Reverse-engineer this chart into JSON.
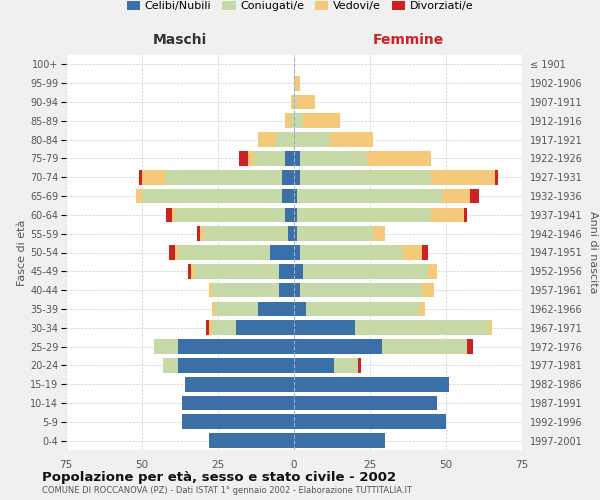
{
  "age_groups": [
    "0-4",
    "5-9",
    "10-14",
    "15-19",
    "20-24",
    "25-29",
    "30-34",
    "35-39",
    "40-44",
    "45-49",
    "50-54",
    "55-59",
    "60-64",
    "65-69",
    "70-74",
    "75-79",
    "80-84",
    "85-89",
    "90-94",
    "95-99",
    "100+"
  ],
  "birth_years": [
    "1997-2001",
    "1992-1996",
    "1987-1991",
    "1982-1986",
    "1977-1981",
    "1972-1976",
    "1967-1971",
    "1962-1966",
    "1957-1961",
    "1952-1956",
    "1947-1951",
    "1942-1946",
    "1937-1941",
    "1932-1936",
    "1927-1931",
    "1922-1926",
    "1917-1921",
    "1912-1916",
    "1907-1911",
    "1902-1906",
    "≤ 1901"
  ],
  "males": {
    "celibe": [
      28,
      37,
      37,
      36,
      38,
      38,
      19,
      12,
      5,
      5,
      8,
      2,
      3,
      4,
      4,
      3,
      0,
      0,
      0,
      0,
      0
    ],
    "coniugato": [
      0,
      0,
      0,
      0,
      5,
      8,
      8,
      14,
      22,
      28,
      30,
      28,
      36,
      46,
      38,
      10,
      6,
      1,
      0,
      0,
      0
    ],
    "vedovo": [
      0,
      0,
      0,
      0,
      0,
      0,
      1,
      1,
      1,
      1,
      1,
      1,
      1,
      2,
      8,
      2,
      6,
      2,
      1,
      0,
      0
    ],
    "divorziato": [
      0,
      0,
      0,
      0,
      0,
      0,
      1,
      0,
      0,
      1,
      2,
      1,
      2,
      0,
      1,
      3,
      0,
      0,
      0,
      0,
      0
    ]
  },
  "females": {
    "nubile": [
      30,
      50,
      47,
      51,
      13,
      29,
      20,
      4,
      2,
      3,
      2,
      1,
      1,
      1,
      2,
      2,
      0,
      0,
      0,
      0,
      0
    ],
    "coniugata": [
      0,
      0,
      0,
      0,
      8,
      28,
      44,
      37,
      40,
      41,
      34,
      25,
      44,
      48,
      43,
      22,
      12,
      3,
      1,
      0,
      0
    ],
    "vedova": [
      0,
      0,
      0,
      0,
      0,
      0,
      1,
      2,
      4,
      3,
      6,
      4,
      11,
      9,
      21,
      21,
      14,
      12,
      6,
      2,
      0
    ],
    "divorziata": [
      0,
      0,
      0,
      0,
      1,
      2,
      0,
      0,
      0,
      0,
      2,
      0,
      1,
      3,
      1,
      0,
      0,
      0,
      0,
      0,
      0
    ]
  },
  "colors": {
    "celibe": "#3a6fa8",
    "coniugato": "#c8d9a8",
    "vedovo": "#f5c97a",
    "divorziato": "#cc2222"
  },
  "legend_labels": [
    "Celibi/Nubili",
    "Coniugati/e",
    "Vedovi/e",
    "Divorziati/e"
  ],
  "title": "Popolazione per età, sesso e stato civile - 2002",
  "subtitle": "COMUNE DI ROCCANOVA (PZ) - Dati ISTAT 1° gennaio 2002 - Elaborazione TUTTITALIA.IT",
  "xlabel_left": "Maschi",
  "xlabel_right": "Femmine",
  "ylabel_left": "Fasce di età",
  "ylabel_right": "Anni di nascita",
  "xlim": 75,
  "background_color": "#f0f0f0",
  "plot_bg": "#ffffff"
}
